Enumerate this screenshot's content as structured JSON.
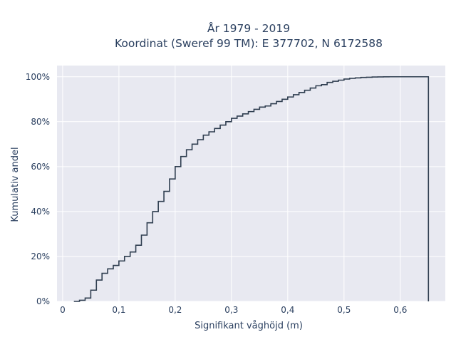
{
  "chart_data": {
    "type": "line",
    "line_shape": "step",
    "title_line1": "År 1979 - 2019",
    "title_line2": "Koordinat (Sweref 99 TM): E 377702, N 6172588",
    "xlabel": "Signifikant våghöjd (m)",
    "ylabel": "Kumulativ andel",
    "xlim": [
      -0.01,
      0.68
    ],
    "ylim": [
      0,
      1.05
    ],
    "x_ticks": [
      0,
      0.1,
      0.2,
      0.3,
      0.4,
      0.5,
      0.6
    ],
    "x_tick_labels": [
      "0",
      "0,1",
      "0,2",
      "0,3",
      "0,4",
      "0,5",
      "0,6"
    ],
    "y_ticks": [
      0,
      0.2,
      0.4,
      0.6,
      0.8,
      1.0
    ],
    "y_tick_labels": [
      "0%",
      "20%",
      "40%",
      "60%",
      "80%",
      "100%"
    ],
    "grid": true,
    "line_color": "#2f3e50",
    "background_color": "#e8e9f1",
    "series": [
      {
        "x": [
          0.02,
          0.03,
          0.04,
          0.05,
          0.06,
          0.07,
          0.08,
          0.09,
          0.1,
          0.11,
          0.12,
          0.13,
          0.14,
          0.15,
          0.16,
          0.17,
          0.18,
          0.19,
          0.2,
          0.21,
          0.22,
          0.23,
          0.24,
          0.25,
          0.26,
          0.27,
          0.28,
          0.29,
          0.3,
          0.31,
          0.32,
          0.33,
          0.34,
          0.35,
          0.36,
          0.37,
          0.38,
          0.39,
          0.4,
          0.41,
          0.42,
          0.43,
          0.44,
          0.45,
          0.46,
          0.47,
          0.48,
          0.49,
          0.5,
          0.51,
          0.52,
          0.53,
          0.54,
          0.55,
          0.56,
          0.57,
          0.58,
          0.59,
          0.6,
          0.61,
          0.62,
          0.63,
          0.64,
          0.65
        ],
        "y": [
          0.0,
          0.005,
          0.015,
          0.05,
          0.095,
          0.125,
          0.145,
          0.16,
          0.18,
          0.2,
          0.22,
          0.25,
          0.295,
          0.35,
          0.4,
          0.445,
          0.49,
          0.545,
          0.6,
          0.645,
          0.675,
          0.7,
          0.72,
          0.74,
          0.755,
          0.77,
          0.785,
          0.8,
          0.815,
          0.825,
          0.835,
          0.845,
          0.855,
          0.865,
          0.87,
          0.88,
          0.89,
          0.9,
          0.91,
          0.92,
          0.93,
          0.94,
          0.95,
          0.96,
          0.965,
          0.975,
          0.98,
          0.985,
          0.99,
          0.993,
          0.995,
          0.997,
          0.998,
          0.999,
          0.9995,
          0.9998,
          1.0,
          1.0,
          1.0,
          1.0,
          1.0,
          1.0,
          1.0,
          1.0
        ],
        "drop_to_zero_at": 0.65
      }
    ]
  }
}
